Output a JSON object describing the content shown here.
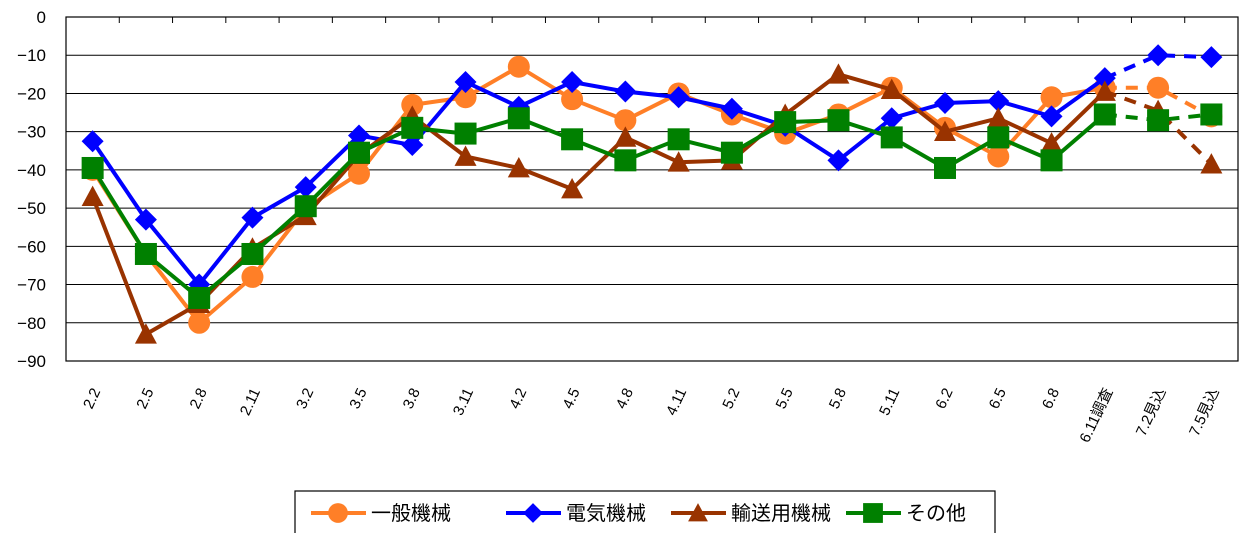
{
  "chart_data": {
    "type": "line",
    "title": "",
    "xlabel": "",
    "ylabel": "",
    "ylim": [
      -90,
      0
    ],
    "yticks": [
      0,
      -10,
      -20,
      -30,
      -40,
      -50,
      -60,
      -70,
      -80,
      -90
    ],
    "grid": "horizontal",
    "legend_position": "bottom-center",
    "categories": [
      "2.2",
      "2.5",
      "2.8",
      "2.11",
      "3.2",
      "3.5",
      "3.8",
      "3.11",
      "4.2",
      "4.5",
      "4.8",
      "4.11",
      "5.2",
      "5.5",
      "5.8",
      "5.11",
      "6.2",
      "6.5",
      "6.8",
      "6.11調査",
      "7.2見込",
      "7.5見込"
    ],
    "solid_through_index": 19,
    "series": [
      {
        "name": "一般機械",
        "color": "#FF7F27",
        "marker": "circle",
        "values": [
          -40,
          -62,
          -80,
          -68,
          -50,
          -41,
          -23,
          -21,
          -13,
          -21.5,
          -27,
          -20,
          -25.5,
          -30.5,
          -25.5,
          -18.5,
          -29,
          -36.5,
          -21,
          -18.5,
          -18.5,
          -26
        ]
      },
      {
        "name": "電気機械",
        "color": "#0000FF",
        "marker": "diamond",
        "values": [
          -32.5,
          -53,
          -70,
          -52.5,
          -44.5,
          -31,
          -33.5,
          -17,
          -23.5,
          -17,
          -19.5,
          -21,
          -24,
          -28.5,
          -37.5,
          -26.5,
          -22.5,
          -22,
          -26,
          -16,
          -10,
          -10.5
        ]
      },
      {
        "name": "輸送用機械",
        "color": "#993300",
        "marker": "triangle",
        "values": [
          -47,
          -83,
          -75,
          -60.5,
          -52,
          -36,
          -26,
          -36.5,
          -39.5,
          -45,
          -31.5,
          -38,
          -37.5,
          -25.5,
          -15,
          -19,
          -30,
          -26.5,
          -33,
          -19.5,
          -24.5,
          -38.5
        ]
      },
      {
        "name": "その他",
        "color": "#008000",
        "marker": "square",
        "values": [
          -39.5,
          -62,
          -73.5,
          -62,
          -49.5,
          -35.5,
          -29,
          -30.5,
          -26.5,
          -32,
          -37.5,
          -32,
          -35.5,
          -27.5,
          -27,
          -31.5,
          -39.5,
          -31.5,
          -37.5,
          -25.5,
          -27,
          -25.5
        ]
      }
    ]
  }
}
